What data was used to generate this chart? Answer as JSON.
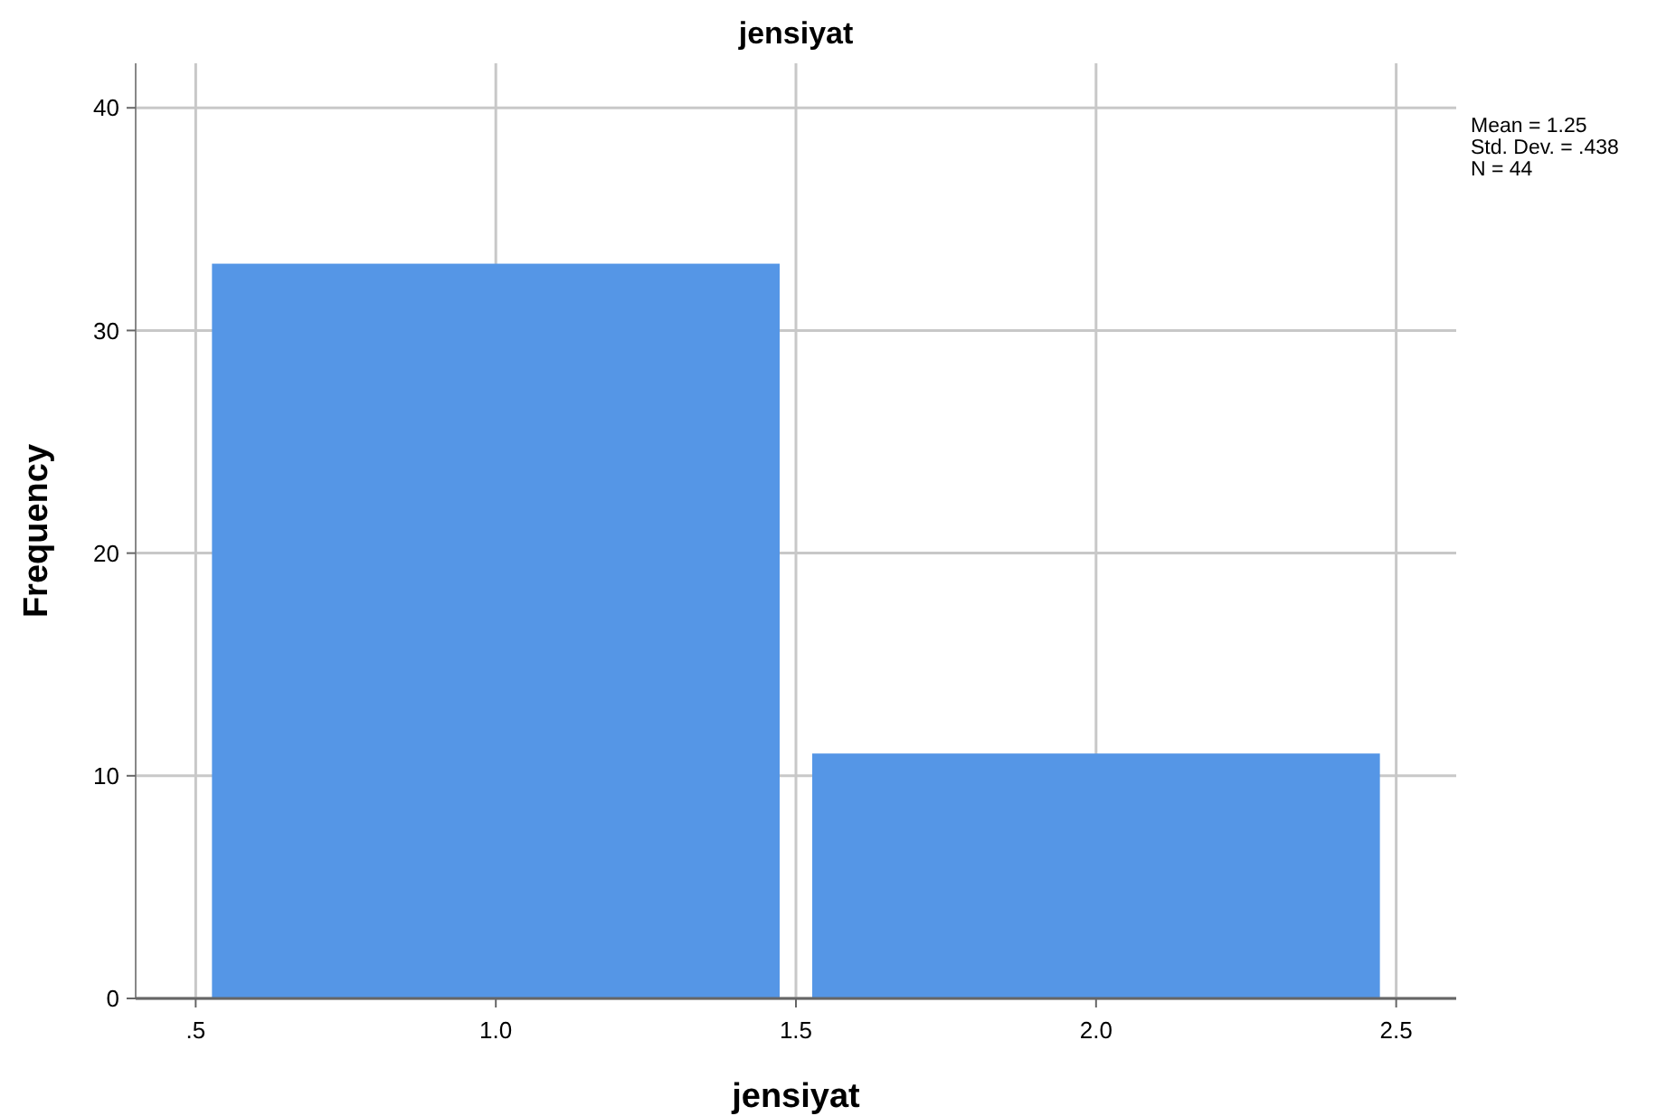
{
  "chart_data": {
    "type": "histogram",
    "title": "jensiyat",
    "xlabel": "jensiyat",
    "ylabel": "Frequency",
    "bins": [
      0.5,
      1.5,
      2.5
    ],
    "values": [
      33,
      11
    ],
    "color": "#5596e6",
    "xlim": [
      0.4,
      2.6
    ],
    "xticks": [
      {
        "value": 0.5,
        "label": ".5"
      },
      {
        "value": 1,
        "label": "1.0"
      },
      {
        "value": 1.5,
        "label": "1.5"
      },
      {
        "value": 2,
        "label": "2.0"
      },
      {
        "value": 2.5,
        "label": "2.5"
      }
    ],
    "ylim": [
      0,
      42
    ],
    "yticks": [
      0,
      10,
      20,
      30,
      40
    ],
    "grid": true,
    "annotations": [
      "Mean = 1.25",
      "Std. Dev. = .438",
      "N = 44"
    ]
  }
}
